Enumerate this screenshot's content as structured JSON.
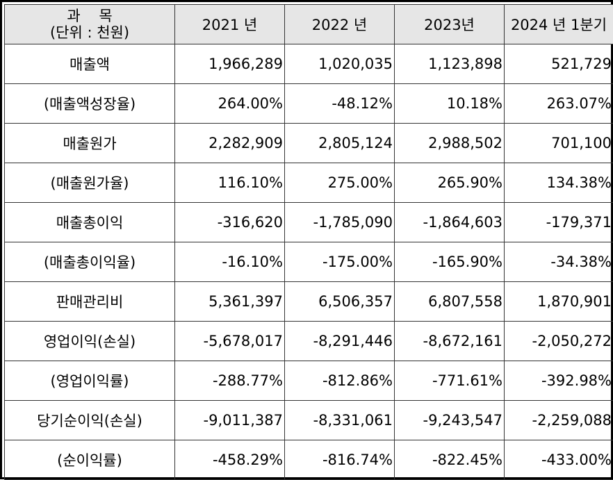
{
  "header": {
    "subject_line1": "과    목",
    "subject_line2": "(단위 : 천원)",
    "years": [
      "2021 년",
      "2022 년",
      "2023년",
      "2024 년 1분기"
    ]
  },
  "colors": {
    "negative": "#ff0000",
    "header_bg": "#e6e6e6"
  },
  "rows": [
    {
      "label": "매출액",
      "values": [
        "1,966,289",
        "1,020,035",
        "1,123,898",
        "521,729"
      ]
    },
    {
      "label": "(매출액성장율)",
      "values": [
        "264.00%",
        "-48.12%",
        "10.18%",
        "263.07%"
      ]
    },
    {
      "label": "매출원가",
      "values": [
        "2,282,909",
        "2,805,124",
        "2,988,502",
        "701,100"
      ]
    },
    {
      "label": "(매출원가율)",
      "values": [
        "116.10%",
        "275.00%",
        "265.90%",
        "134.38%"
      ]
    },
    {
      "label": "매출총이익",
      "values": [
        "-316,620",
        "-1,785,090",
        "-1,864,603",
        "-179,371"
      ]
    },
    {
      "label": "(매출총이익율)",
      "values": [
        "-16.10%",
        "-175.00%",
        "-165.90%",
        "-34.38%"
      ]
    },
    {
      "label": "판매관리비",
      "values": [
        "5,361,397",
        "6,506,357",
        "6,807,558",
        "1,870,901"
      ]
    },
    {
      "label": "영업이익(손실)",
      "values": [
        "-5,678,017",
        "-8,291,446",
        "-8,672,161",
        "-2,050,272"
      ]
    },
    {
      "label": "(영업이익률)",
      "values": [
        "-288.77%",
        "-812.86%",
        "-771.61%",
        "-392.98%"
      ]
    },
    {
      "label": "당기순이익(손실)",
      "values": [
        "-9,011,387",
        "-8,331,061",
        "-9,243,547",
        "-2,259,088"
      ]
    },
    {
      "label": "(순이익률)",
      "values": [
        "-458.29%",
        "-816.74%",
        "-822.45%",
        "-433.00%"
      ]
    }
  ]
}
